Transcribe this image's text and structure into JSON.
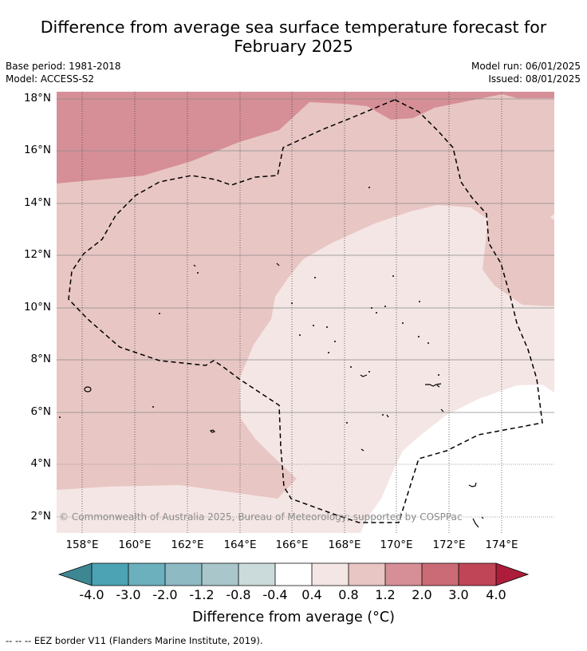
{
  "title_line1": "Difference from average sea surface temperature forecast for",
  "title_line2": "February 2025",
  "base_period": "Base period: 1981-2018",
  "model": "Model: ACCESS-S2",
  "model_run": "Model run: 06/01/2025",
  "issued": "Issued: 08/01/2025",
  "copyright": "© Commonwealth of Australia 2025, Bureau of Meteorology; supported by COSPPac",
  "lat_labels": [
    "18°N",
    "16°N",
    "14°N",
    "12°N",
    "10°N",
    "8°N",
    "6°N",
    "4°N",
    "2°N"
  ],
  "lon_labels": [
    "158°E",
    "160°E",
    "162°E",
    "164°E",
    "166°E",
    "168°E",
    "170°E",
    "172°E",
    "174°E"
  ],
  "colorbar": {
    "title": "Difference from average (°C)",
    "tick_labels": [
      "-4.0",
      "-3.0",
      "-2.0",
      "-1.2",
      "-0.8",
      "-0.4",
      "0.4",
      "0.8",
      "1.2",
      "2.0",
      "3.0",
      "4.0"
    ],
    "colors": [
      "#4ba3b4",
      "#6cb0be",
      "#8ebac4",
      "#a9c6cb",
      "#cbdada",
      "#ffffff",
      "#f4e6e4",
      "#e8c6c3",
      "#d68f96",
      "#cb6b75",
      "#c04556"
    ],
    "under_color": "#3d8793",
    "over_color": "#ad1d3b"
  },
  "legend_footer": "-- -- -- EEZ border V11 (Flanders Marine Institute, 2019).",
  "map_colors": {
    "band_1.2_2.0": "#d68f96",
    "band_0.8_1.2": "#e8c6c3",
    "band_0.4_0.8": "#f4e6e4",
    "band_neutral": "#ffffff"
  }
}
